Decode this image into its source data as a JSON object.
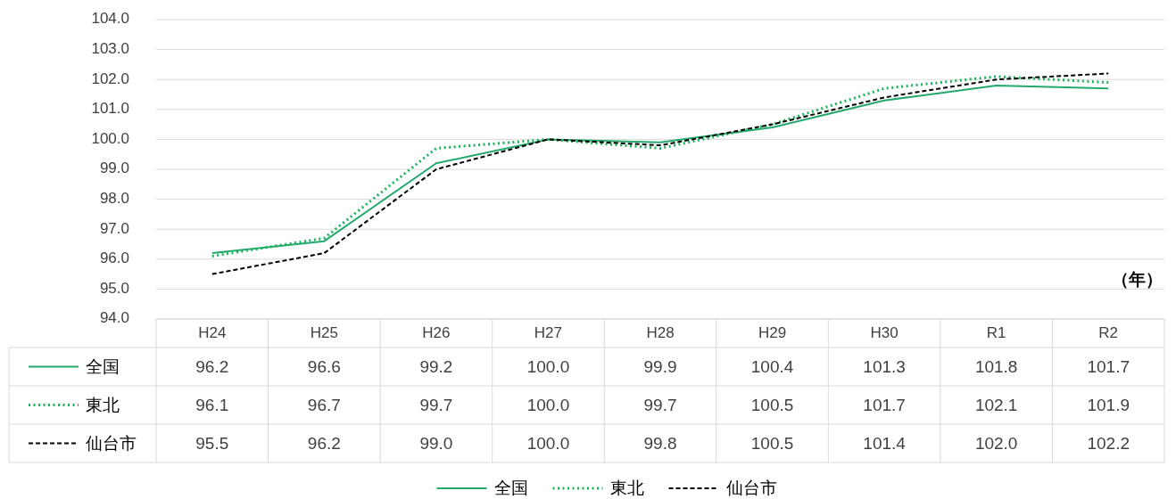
{
  "chart_data": {
    "type": "line",
    "categories": [
      "H24",
      "H25",
      "H26",
      "H27",
      "H28",
      "H29",
      "H30",
      "R1",
      "R2"
    ],
    "series": [
      {
        "name": "全国",
        "color": "#23a86e",
        "line_style": "solid",
        "values": [
          96.2,
          96.6,
          99.2,
          100.0,
          99.9,
          100.4,
          101.3,
          101.8,
          101.7
        ],
        "value_labels": [
          "96.2",
          "96.6",
          "99.2",
          "100.0",
          "99.9",
          "100.4",
          "101.3",
          "101.8",
          "101.7"
        ]
      },
      {
        "name": "東北",
        "color": "#19b35a",
        "line_style": "dotted",
        "values": [
          96.1,
          96.7,
          99.7,
          100.0,
          99.7,
          100.5,
          101.7,
          102.1,
          101.9
        ],
        "value_labels": [
          "96.1",
          "96.7",
          "99.7",
          "100.0",
          "99.7",
          "100.5",
          "101.7",
          "102.1",
          "101.9"
        ]
      },
      {
        "name": "仙台市",
        "color": "#000000",
        "line_style": "dashed",
        "values": [
          95.5,
          96.2,
          99.0,
          100.0,
          99.8,
          100.5,
          101.4,
          102.0,
          102.2
        ],
        "value_labels": [
          "95.5",
          "96.2",
          "99.0",
          "100.0",
          "99.8",
          "100.5",
          "101.4",
          "102.0",
          "102.2"
        ]
      }
    ],
    "ylim": [
      94,
      104
    ],
    "yticks": [
      {
        "value": 94,
        "label": "94.0"
      },
      {
        "value": 95,
        "label": "95.0"
      },
      {
        "value": 96,
        "label": "96.0"
      },
      {
        "value": 97,
        "label": "97.0"
      },
      {
        "value": 98,
        "label": "98.0"
      },
      {
        "value": 99,
        "label": "99.0"
      },
      {
        "value": 100,
        "label": "100.0"
      },
      {
        "value": 101,
        "label": "101.0"
      },
      {
        "value": 102,
        "label": "102.0"
      },
      {
        "value": 103,
        "label": "103.0"
      },
      {
        "value": 104,
        "label": "104.0"
      }
    ],
    "grid": "y",
    "legend": "bottom",
    "annotations": [
      "（年）"
    ]
  }
}
